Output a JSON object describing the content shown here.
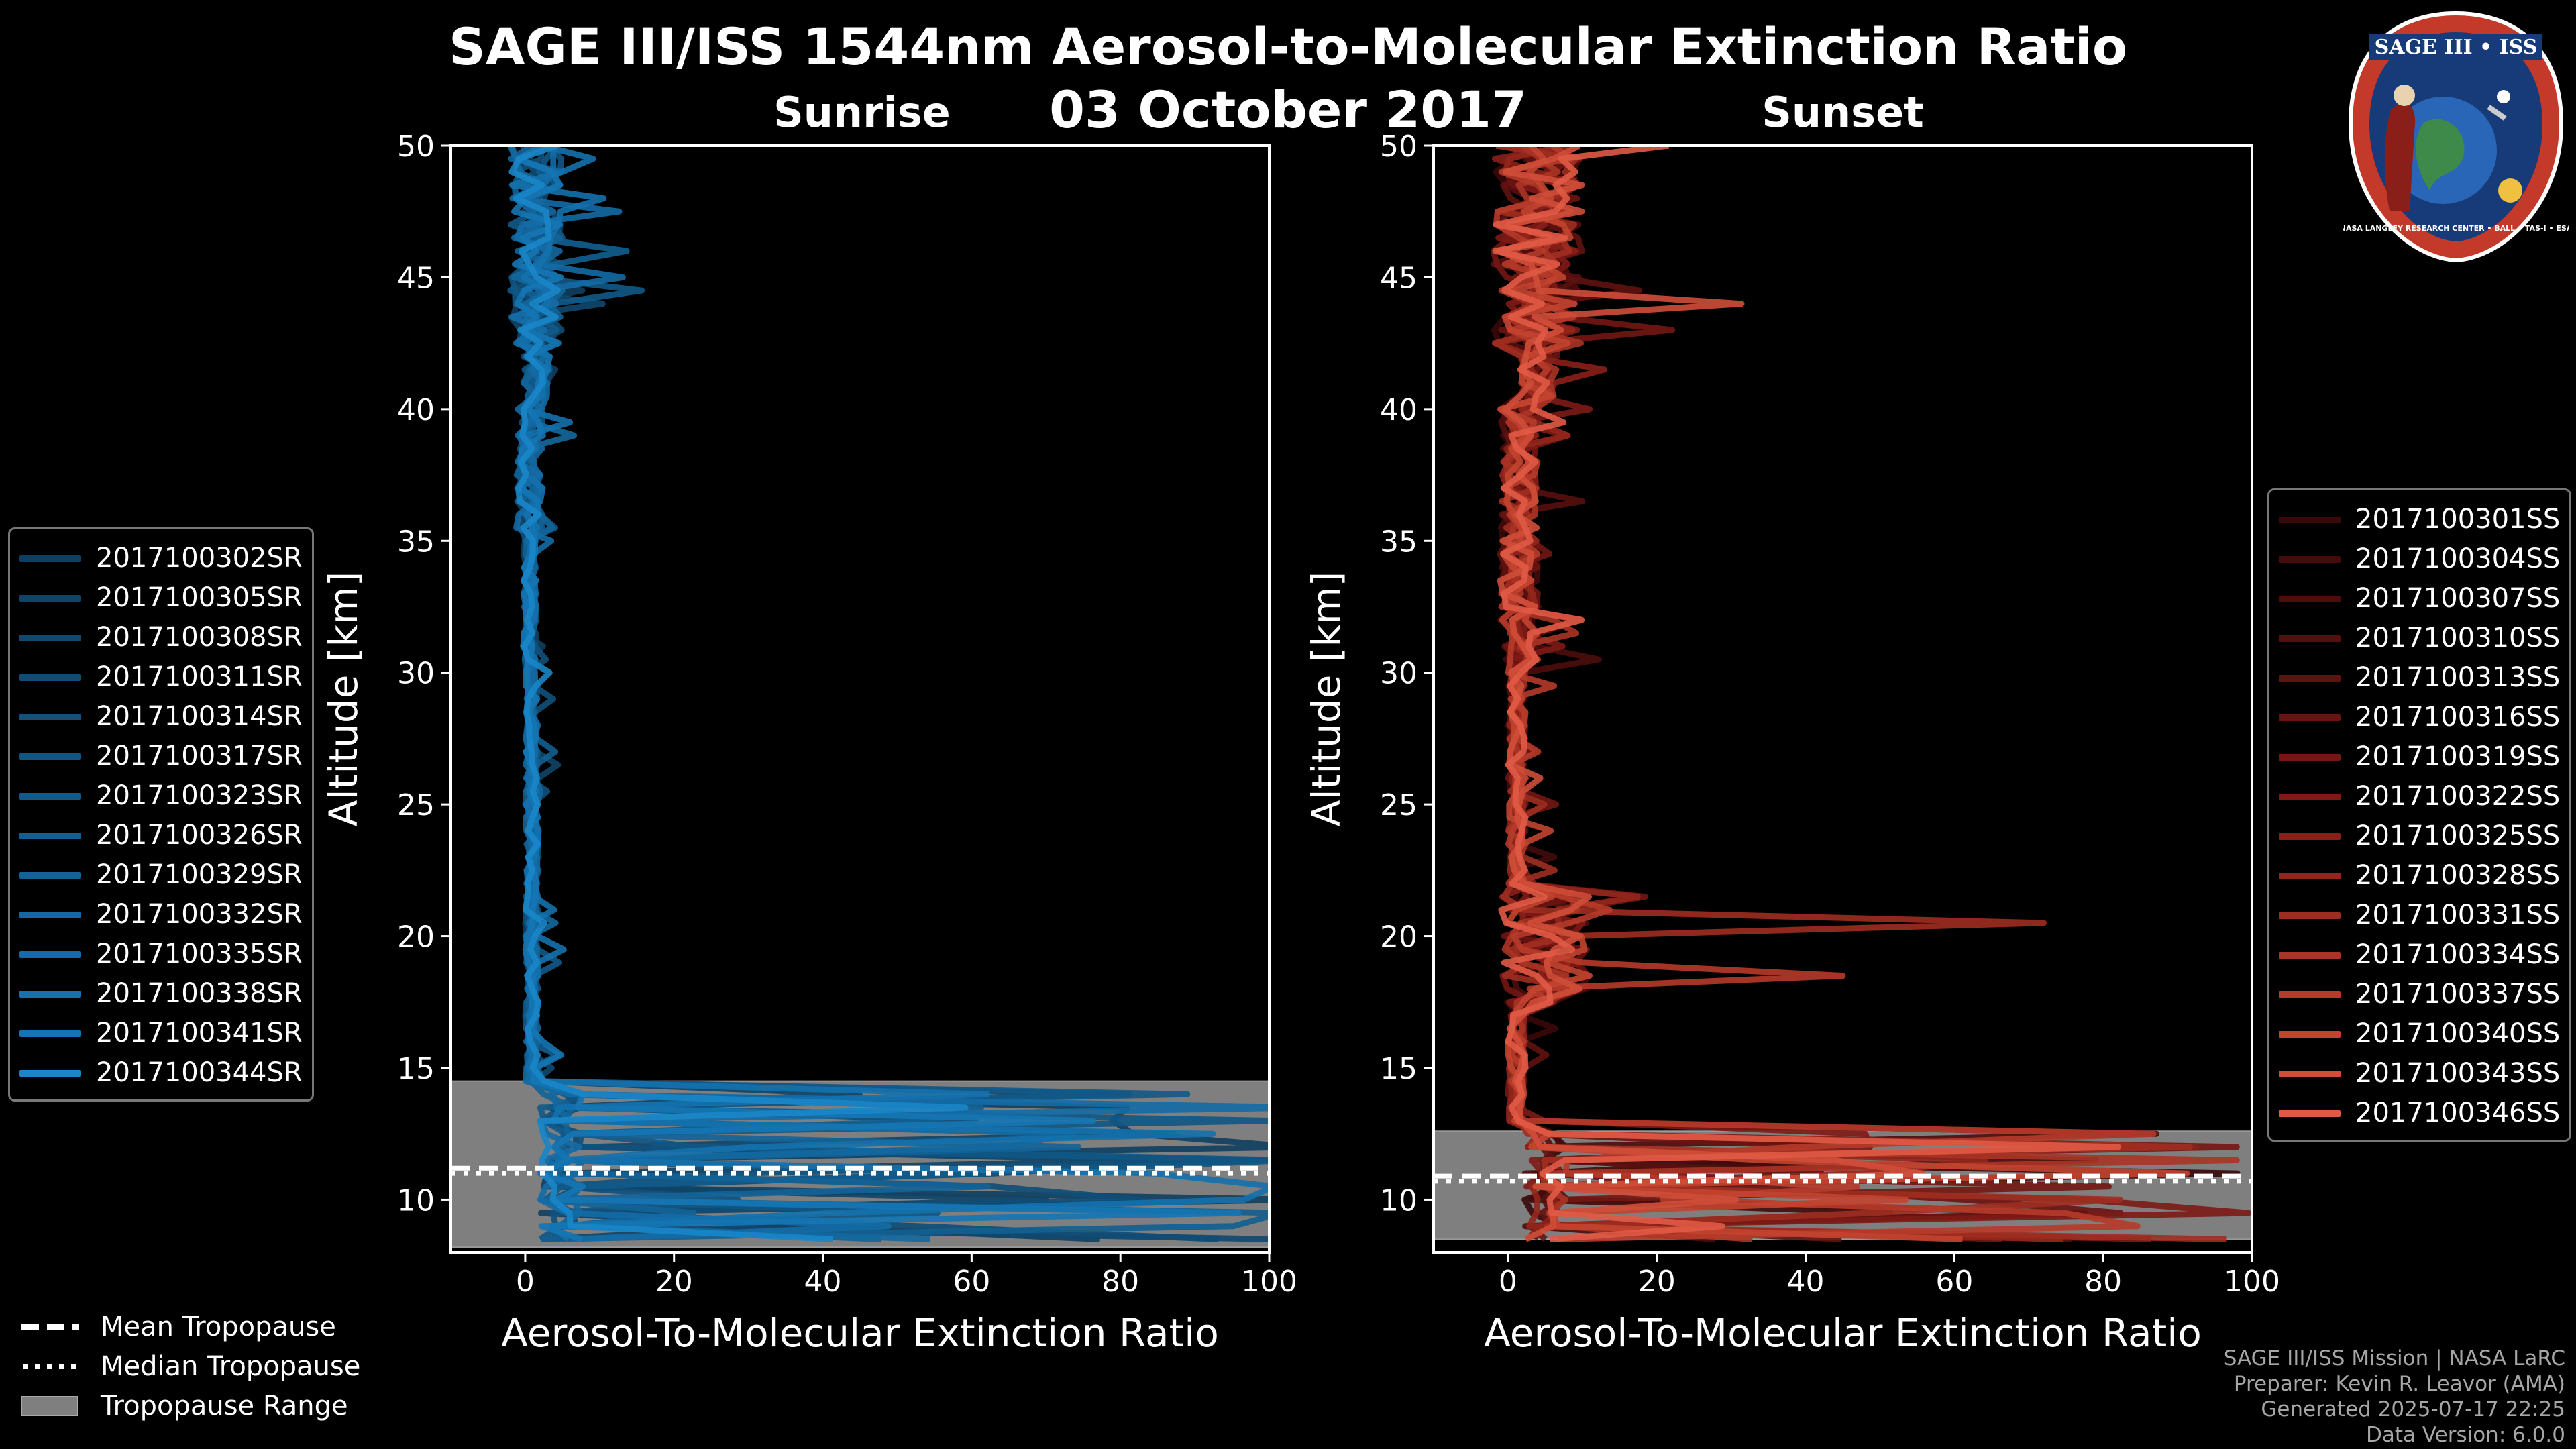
{
  "figure": {
    "title": "SAGE III/ISS 1544nm Aerosol-to-Molecular Extinction Ratio",
    "date": "03 October 2017",
    "logo_text": "SAGE III • ISS",
    "logo_ring_text": "NASA LANGLEY RESEARCH CENTER • BALL • TAS-I • ESA"
  },
  "credits": {
    "line1": "SAGE III/ISS Mission | NASA LaRC",
    "line2": "Preparer: Kevin R. Leavor (AMA)",
    "line3": "Generated 2025-07-17 22:25",
    "line4": "Data Version: 6.0.0"
  },
  "tropopause_legend": {
    "mean": "Mean Tropopause",
    "median": "Median Tropopause",
    "range": "Tropopause Range",
    "range_color": "#7f7f7f"
  },
  "chart_data": [
    {
      "type": "line",
      "title": "Sunrise",
      "xlabel": "Aerosol-To-Molecular Extinction Ratio",
      "ylabel": "Altitude [km]",
      "xlim": [
        -10,
        100
      ],
      "ylim": [
        8,
        50
      ],
      "xticks": [
        0,
        20,
        40,
        60,
        80,
        100
      ],
      "yticks": [
        10,
        15,
        20,
        25,
        30,
        35,
        40,
        45,
        50
      ],
      "series_colors": [
        "#0f3f60",
        "#0f4467",
        "#10486e",
        "#104d75",
        "#11517c",
        "#115683",
        "#125a8a",
        "#125f91",
        "#136398",
        "#13689f",
        "#146ca6",
        "#1471ad",
        "#1575b4",
        "#1a86c8"
      ],
      "series": [
        {
          "name": "2017100302SR"
        },
        {
          "name": "2017100305SR"
        },
        {
          "name": "2017100308SR"
        },
        {
          "name": "2017100311SR"
        },
        {
          "name": "2017100314SR"
        },
        {
          "name": "2017100317SR"
        },
        {
          "name": "2017100323SR"
        },
        {
          "name": "2017100326SR"
        },
        {
          "name": "2017100329SR"
        },
        {
          "name": "2017100332SR"
        },
        {
          "name": "2017100335SR"
        },
        {
          "name": "2017100338SR"
        },
        {
          "name": "2017100341SR"
        },
        {
          "name": "2017100344SR"
        }
      ],
      "tropopause": {
        "range": [
          8.2,
          14.5
        ],
        "mean": 11.2,
        "median": 11.0
      }
    },
    {
      "type": "line",
      "title": "Sunset",
      "xlabel": "Aerosol-To-Molecular Extinction Ratio",
      "ylabel": "Altitude [km]",
      "xlim": [
        -10,
        100
      ],
      "ylim": [
        8,
        50
      ],
      "xticks": [
        0,
        20,
        40,
        60,
        80,
        100
      ],
      "yticks": [
        10,
        15,
        20,
        25,
        30,
        35,
        40,
        45,
        50
      ],
      "series_colors": [
        "#3a0909",
        "#430b0b",
        "#4c0d0c",
        "#560f0e",
        "#5f1210",
        "#691412",
        "#731714",
        "#7d1a16",
        "#882018",
        "#93261c",
        "#9e2d20",
        "#aa3425",
        "#b63b2a",
        "#c24430",
        "#cf4e38",
        "#e05a45"
      ],
      "series": [
        {
          "name": "2017100301SS"
        },
        {
          "name": "2017100304SS"
        },
        {
          "name": "2017100307SS"
        },
        {
          "name": "2017100310SS"
        },
        {
          "name": "2017100313SS"
        },
        {
          "name": "2017100316SS"
        },
        {
          "name": "2017100319SS"
        },
        {
          "name": "2017100322SS"
        },
        {
          "name": "2017100325SS"
        },
        {
          "name": "2017100328SS"
        },
        {
          "name": "2017100331SS"
        },
        {
          "name": "2017100334SS"
        },
        {
          "name": "2017100337SS"
        },
        {
          "name": "2017100340SS"
        },
        {
          "name": "2017100343SS"
        },
        {
          "name": "2017100346SS"
        }
      ],
      "tropopause": {
        "range": [
          8.5,
          12.6
        ],
        "mean": 10.9,
        "median": 10.7
      }
    }
  ]
}
